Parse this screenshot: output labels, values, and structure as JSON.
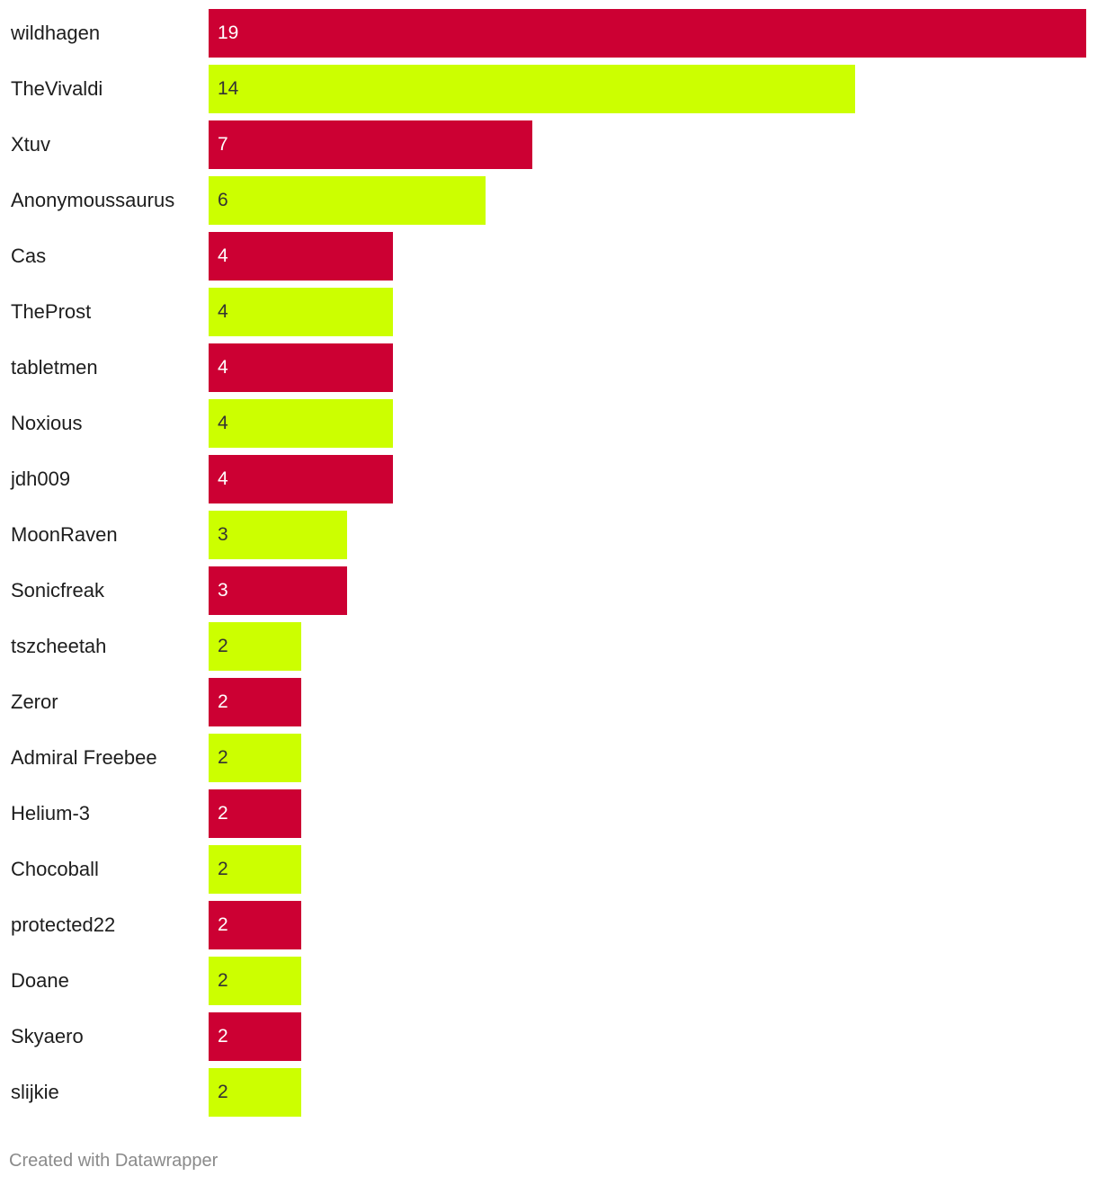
{
  "chart_data": {
    "type": "bar",
    "orientation": "horizontal",
    "categories": [
      "wildhagen",
      "TheVivaldi",
      "Xtuv",
      "Anonymoussaurus",
      "Cas",
      "TheProst",
      "tabletmen",
      "Noxious",
      "jdh009",
      "MoonRaven",
      "Sonicfreak",
      "tszcheetah",
      "Zeror",
      "Admiral Freebee",
      "Helium-3",
      "Chocoball",
      "protected22",
      "Doane",
      "Skyaero",
      "slijkie"
    ],
    "values": [
      19,
      14,
      7,
      6,
      4,
      4,
      4,
      4,
      4,
      3,
      3,
      2,
      2,
      2,
      2,
      2,
      2,
      2,
      2,
      2
    ],
    "xlim": [
      0,
      19
    ],
    "grid": false,
    "colors": [
      "#cc0033",
      "#ccff00"
    ],
    "label_colors": [
      "#ffffff",
      "#333333"
    ],
    "value_labels": "inside bar, left-aligned"
  },
  "footer": {
    "credit": "Created with Datawrapper"
  }
}
